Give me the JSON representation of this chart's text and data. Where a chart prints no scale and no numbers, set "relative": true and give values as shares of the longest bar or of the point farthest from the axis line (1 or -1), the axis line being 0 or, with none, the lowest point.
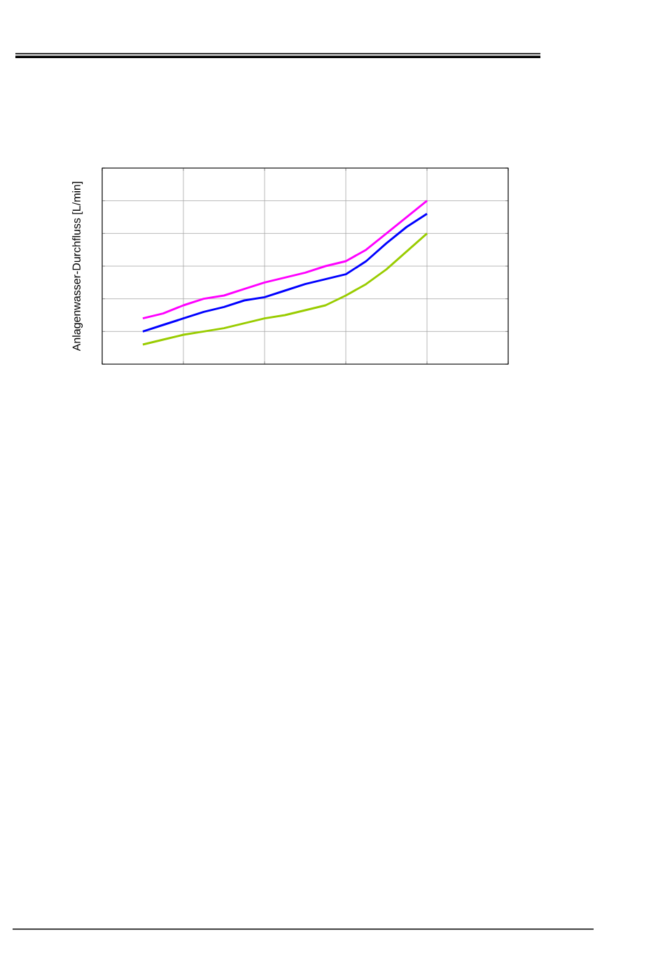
{
  "chart_data": {
    "type": "line",
    "ylabel": "Anlagenwasser-Durchfluss [L/min]",
    "relative": true,
    "grid": true,
    "marker": "none",
    "line_style": "solid",
    "categories": [
      null,
      null,
      null,
      null,
      null,
      null,
      null,
      null,
      null,
      null,
      null,
      null,
      null,
      null,
      null
    ],
    "series": [
      {
        "color": "#ff00ff",
        "values": [
          0.28,
          0.31,
          0.36,
          0.4,
          0.42,
          0.46,
          0.5,
          0.53,
          0.56,
          0.6,
          0.63,
          0.7,
          0.8,
          0.9,
          1.0
        ]
      },
      {
        "color": "#0000ff",
        "values": [
          0.2,
          0.24,
          0.28,
          0.32,
          0.35,
          0.39,
          0.41,
          0.45,
          0.49,
          0.52,
          0.55,
          0.63,
          0.74,
          0.84,
          0.92
        ]
      },
      {
        "color": "#99cc00",
        "values": [
          0.12,
          0.15,
          0.18,
          0.2,
          0.22,
          0.25,
          0.28,
          0.3,
          0.33,
          0.36,
          0.42,
          0.49,
          0.58,
          0.69,
          0.8
        ]
      }
    ]
  }
}
